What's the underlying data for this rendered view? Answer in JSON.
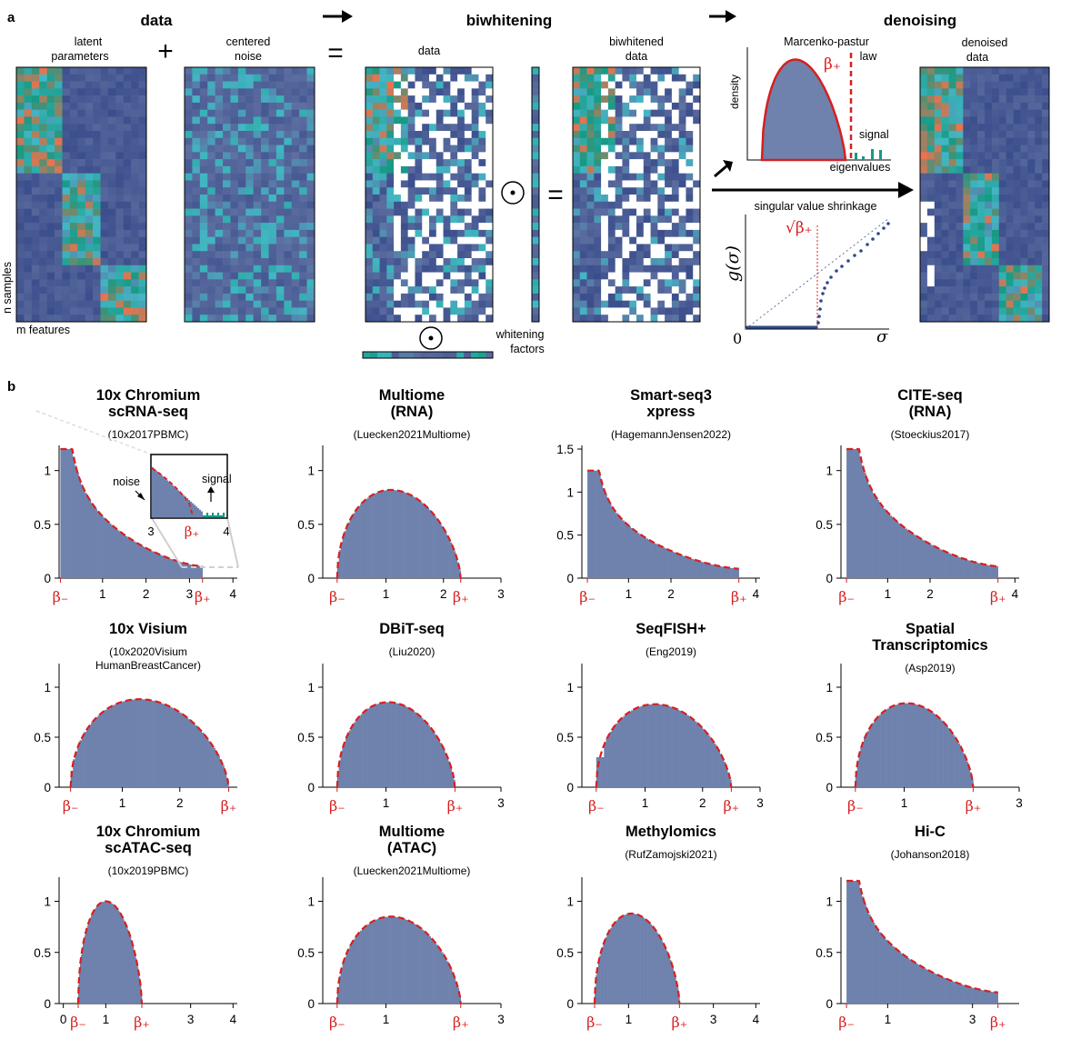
{
  "panel_a": {
    "label": "a",
    "section_data": "data",
    "section_biwhitening": "biwhitening",
    "section_denoising": "denoising",
    "latent_label_line1": "latent",
    "latent_label_line2": "parameters",
    "noise_label_line1": "centered",
    "noise_label_line2": "noise",
    "plus": "+",
    "equals": "=",
    "data_label": "data",
    "biwhitened_line1": "biwhitened",
    "biwhitened_line2": "data",
    "denoised_line1": "denoised",
    "denoised_line2": "data",
    "n_samples": "n samples",
    "m_features": "m features",
    "whitening_line1": "whitening",
    "whitening_line2": "factors",
    "odot": "⊙",
    "mp_title_line1": "Marcenko-pastur",
    "mp_title_line2": "law",
    "mp_density": "density",
    "mp_beta": "β₊",
    "mp_signal": "signal",
    "mp_eigenvalues": "eigenvalues",
    "shrinkage_label": "singular value shrinkage",
    "g_sigma": "g(σ)",
    "sqrt_beta": "√β₊",
    "zero": "0",
    "sigma": "σ",
    "colors": {
      "low": "#3b4e8c",
      "mid": "#42b7c4",
      "teal": "#159a84",
      "high": "#e8744f",
      "curve": "#d62020"
    }
  },
  "panel_b": {
    "label": "b",
    "beta_minus": "β₋",
    "beta_plus": "β₊",
    "noise_inset": "noise",
    "signal_inset": "signal",
    "inset_ticks": [
      "3",
      "β₊",
      "4"
    ]
  },
  "chart_data": [
    {
      "type": "bar",
      "title": "10x Chromium scRNA-seq",
      "subtitle": "(10x2017PBMC)",
      "shape": "mp",
      "beta_minus": 0.03,
      "beta_plus": 3.3,
      "xlim": [
        0,
        4.1
      ],
      "ylim": [
        0,
        1.2
      ],
      "yticks": [
        "0",
        "0.5",
        "1"
      ],
      "xticks": [
        "1",
        "2",
        "3",
        "4"
      ]
    },
    {
      "type": "bar",
      "title": "Multiome (RNA)",
      "subtitle": "(Luecken2021Multiome)",
      "shape": "mp",
      "beta_minus": 0.15,
      "beta_plus": 2.3,
      "xlim": [
        -0.1,
        3.0
      ],
      "ylim": [
        0,
        1.2
      ],
      "yticks": [
        "0",
        "0.5",
        "1"
      ],
      "xticks": [
        "1",
        "2",
        "3"
      ]
    },
    {
      "type": "bar",
      "title": "Smart-seq3 xpress",
      "subtitle": "(HagemannJensen2022)",
      "shape": "mp",
      "beta_minus": 0.03,
      "beta_plus": 3.6,
      "xlim": [
        -0.1,
        4.1
      ],
      "ylim": [
        0,
        1.5
      ],
      "yticks": [
        "0",
        "0.5",
        "1",
        "1.5"
      ],
      "xticks": [
        "1",
        "2",
        "4"
      ]
    },
    {
      "type": "bar",
      "title": "CITE-seq (RNA)",
      "subtitle": "(Stoeckius2017)",
      "shape": "mp",
      "beta_minus": 0.03,
      "beta_plus": 3.6,
      "xlim": [
        -0.1,
        4.1
      ],
      "ylim": [
        0,
        1.2
      ],
      "yticks": [
        "0",
        "0.5",
        "1"
      ],
      "xticks": [
        "1",
        "2",
        "4"
      ]
    },
    {
      "type": "bar",
      "title": "10x Visium",
      "subtitle": "(10x2020Visium HumanBreastCancer)",
      "shape": "mp",
      "beta_minus": 0.1,
      "beta_plus": 2.85,
      "xlim": [
        -0.1,
        3.0
      ],
      "ylim": [
        0,
        1.2
      ],
      "yticks": [
        "0",
        "0.5",
        "1"
      ],
      "xticks": [
        "1",
        "2"
      ]
    },
    {
      "type": "bar",
      "title": "DBiT-seq",
      "subtitle": "(Liu2020)",
      "shape": "mp",
      "beta_minus": 0.15,
      "beta_plus": 2.2,
      "xlim": [
        -0.1,
        3.0
      ],
      "ylim": [
        0,
        1.2
      ],
      "yticks": [
        "0",
        "0.5",
        "1"
      ],
      "xticks": [
        "1",
        "3"
      ]
    },
    {
      "type": "bar",
      "title": "SeqFISH+",
      "subtitle": "(Eng2019)",
      "shape": "mp",
      "beta_minus": 0.15,
      "beta_plus": 2.5,
      "xlim": [
        -0.1,
        3.0
      ],
      "ylim": [
        0,
        1.2
      ],
      "yticks": [
        "0",
        "0.5",
        "1"
      ],
      "xticks": [
        "1",
        "2",
        "3"
      ]
    },
    {
      "type": "bar",
      "title": "Spatial Transcriptomics",
      "subtitle": "(Asp2019)",
      "shape": "mp",
      "beta_minus": 0.15,
      "beta_plus": 2.2,
      "xlim": [
        -0.1,
        3.0
      ],
      "ylim": [
        0,
        1.2
      ],
      "yticks": [
        "0",
        "0.5",
        "1"
      ],
      "xticks": [
        "1",
        "3"
      ]
    },
    {
      "type": "bar",
      "title": "10x Chromium scATAC-seq",
      "subtitle": "(10x2019PBMC)",
      "shape": "mp",
      "beta_minus": 0.35,
      "beta_plus": 1.85,
      "xlim": [
        -0.1,
        4.1
      ],
      "ylim": [
        0,
        1.2
      ],
      "yticks": [
        "0",
        "0.5",
        "1"
      ],
      "xticks": [
        "0",
        "1",
        "3",
        "4"
      ]
    },
    {
      "type": "bar",
      "title": "Multiome (ATAC)",
      "subtitle": "(Luecken2021Multiome)",
      "shape": "mp",
      "beta_minus": 0.15,
      "beta_plus": 2.3,
      "xlim": [
        -0.1,
        3.0
      ],
      "ylim": [
        0,
        1.2
      ],
      "yticks": [
        "0",
        "0.5",
        "1"
      ],
      "xticks": [
        "1",
        "3"
      ]
    },
    {
      "type": "bar",
      "title": "Methylomics",
      "subtitle": "(RufZamojski2021)",
      "shape": "mp",
      "beta_minus": 0.2,
      "beta_plus": 2.2,
      "xlim": [
        -0.1,
        4.1
      ],
      "ylim": [
        0,
        1.2
      ],
      "yticks": [
        "0",
        "0.5",
        "1"
      ],
      "xticks": [
        "1",
        "3",
        "4"
      ]
    },
    {
      "type": "bar",
      "title": "Hi-C",
      "subtitle": "(Johanson2018)",
      "shape": "mp",
      "beta_minus": 0.03,
      "beta_plus": 3.6,
      "xlim": [
        -0.1,
        4.1
      ],
      "ylim": [
        0,
        1.2
      ],
      "yticks": [
        "0",
        "0.5",
        "1"
      ],
      "xticks": [
        "1",
        "3"
      ]
    }
  ]
}
